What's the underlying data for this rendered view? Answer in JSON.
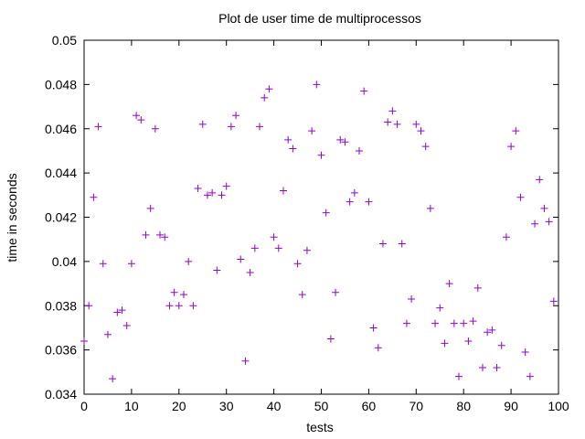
{
  "chart_data": {
    "type": "scatter",
    "title": "Plot de user time de multiprocessos",
    "xlabel": "tests",
    "ylabel": "time in seconds",
    "xlim": [
      0,
      100
    ],
    "ylim": [
      0.034,
      0.05
    ],
    "xticks": [
      "0",
      "10",
      "20",
      "30",
      "40",
      "50",
      "60",
      "70",
      "80",
      "90",
      "100"
    ],
    "yticks": [
      "0.034",
      "0.036",
      "0.038",
      "0.04",
      "0.042",
      "0.044",
      "0.046",
      "0.048",
      "0.05"
    ],
    "grid": false,
    "marker": "plus",
    "color": "#9400d3",
    "series": [
      {
        "x": [
          0,
          1,
          2,
          3,
          4,
          5,
          6,
          7,
          8,
          9,
          10,
          11,
          12,
          13,
          14,
          15,
          16,
          17,
          18,
          19,
          20,
          21,
          22,
          23,
          24,
          25,
          26,
          27,
          28,
          29,
          30,
          31,
          32,
          33,
          34,
          35,
          36,
          37,
          38,
          39,
          40,
          41,
          42,
          43,
          44,
          45,
          46,
          47,
          48,
          49,
          50,
          51,
          52,
          53,
          54,
          55,
          56,
          57,
          58,
          59,
          60,
          61,
          62,
          63,
          64,
          65,
          66,
          67,
          68,
          69,
          70,
          71,
          72,
          73,
          74,
          75,
          76,
          77,
          78,
          79,
          80,
          81,
          82,
          83,
          84,
          85,
          86,
          87,
          88,
          89,
          90,
          91,
          92,
          93,
          94,
          95,
          96,
          97,
          98,
          99
        ],
        "y": [
          0.0364,
          0.038,
          0.0429,
          0.0461,
          0.0399,
          0.0367,
          0.0347,
          0.0377,
          0.0378,
          0.0371,
          0.0399,
          0.0466,
          0.0464,
          0.0412,
          0.0424,
          0.046,
          0.0412,
          0.0411,
          0.038,
          0.0386,
          0.038,
          0.0385,
          0.04,
          0.038,
          0.0433,
          0.0462,
          0.043,
          0.0431,
          0.0396,
          0.043,
          0.0434,
          0.0461,
          0.0466,
          0.0401,
          0.0355,
          0.0395,
          0.0406,
          0.0461,
          0.0474,
          0.0478,
          0.0411,
          0.0406,
          0.0432,
          0.0455,
          0.0451,
          0.0399,
          0.0385,
          0.0405,
          0.0459,
          0.048,
          0.0448,
          0.0422,
          0.0365,
          0.0386,
          0.0455,
          0.0454,
          0.0427,
          0.0431,
          0.045,
          0.0477,
          0.0427,
          0.037,
          0.0361,
          0.0408,
          0.0463,
          0.0468,
          0.0462,
          0.0408,
          0.0372,
          0.0383,
          0.0462,
          0.0459,
          0.0452,
          0.0424,
          0.0372,
          0.0379,
          0.0363,
          0.039,
          0.0372,
          0.0348,
          0.0372,
          0.0364,
          0.0373,
          0.0388,
          0.0352,
          0.0368,
          0.0369,
          0.0352,
          0.0362,
          0.0411,
          0.0452,
          0.0459,
          0.0429,
          0.0359,
          0.0348,
          0.0417,
          0.0437,
          0.0424,
          0.0418,
          0.0382
        ]
      }
    ]
  }
}
